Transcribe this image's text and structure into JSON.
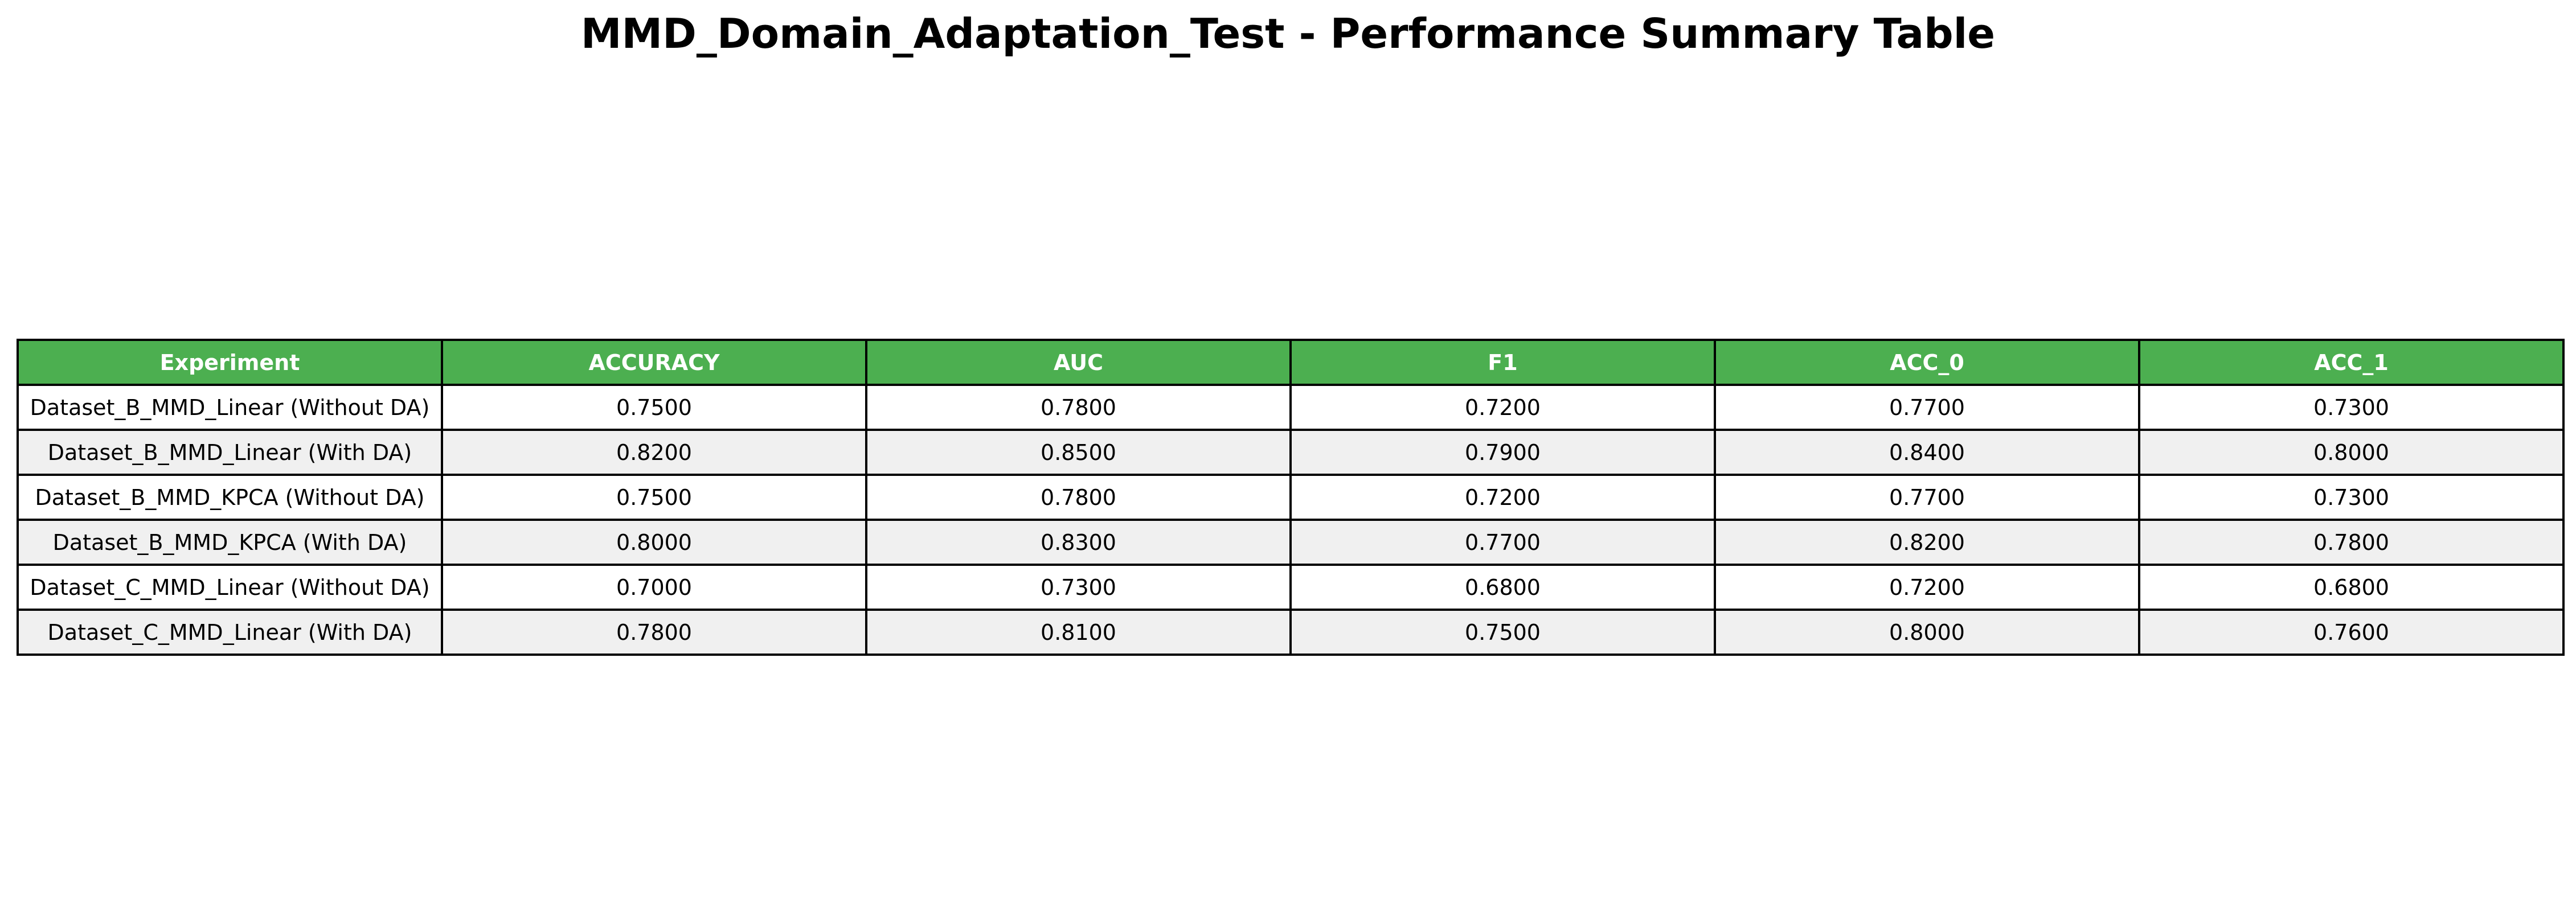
{
  "title": "MMD_Domain_Adaptation_Test - Performance Summary Table",
  "colors": {
    "header_background": "#4CAF50",
    "header_text": "#ffffff",
    "row_even": "#ffffff",
    "row_odd": "#f0f0f0",
    "border": "#000000"
  },
  "chart_data": {
    "type": "table",
    "title": "MMD_Domain_Adaptation_Test - Performance Summary Table",
    "columns": [
      "Experiment",
      "ACCURACY",
      "AUC",
      "F1",
      "ACC_0",
      "ACC_1"
    ],
    "rows": [
      [
        "Dataset_B_MMD_Linear (Without DA)",
        "0.7500",
        "0.7800",
        "0.7200",
        "0.7700",
        "0.7300"
      ],
      [
        "Dataset_B_MMD_Linear (With DA)",
        "0.8200",
        "0.8500",
        "0.7900",
        "0.8400",
        "0.8000"
      ],
      [
        "Dataset_B_MMD_KPCA (Without DA)",
        "0.7500",
        "0.7800",
        "0.7200",
        "0.7700",
        "0.7300"
      ],
      [
        "Dataset_B_MMD_KPCA (With DA)",
        "0.8000",
        "0.8300",
        "0.7700",
        "0.8200",
        "0.7800"
      ],
      [
        "Dataset_C_MMD_Linear (Without DA)",
        "0.7000",
        "0.7300",
        "0.6800",
        "0.7200",
        "0.6800"
      ],
      [
        "Dataset_C_MMD_Linear (With DA)",
        "0.7800",
        "0.8100",
        "0.7500",
        "0.8000",
        "0.7600"
      ]
    ]
  }
}
